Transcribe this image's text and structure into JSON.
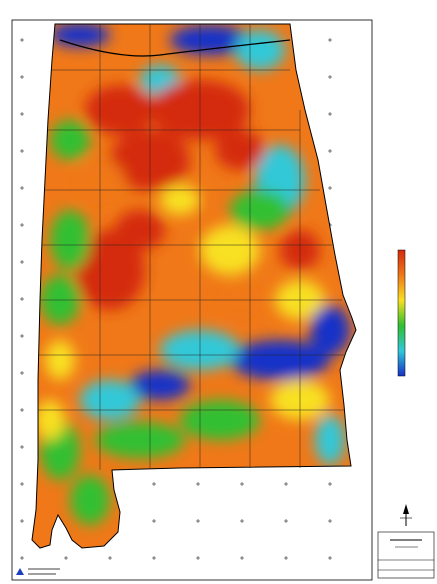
{
  "legend": {
    "colors": [
      "#d42a10",
      "#f07818",
      "#f8e020",
      "#30c030",
      "#30c8d8",
      "#1830c8"
    ]
  }
}
